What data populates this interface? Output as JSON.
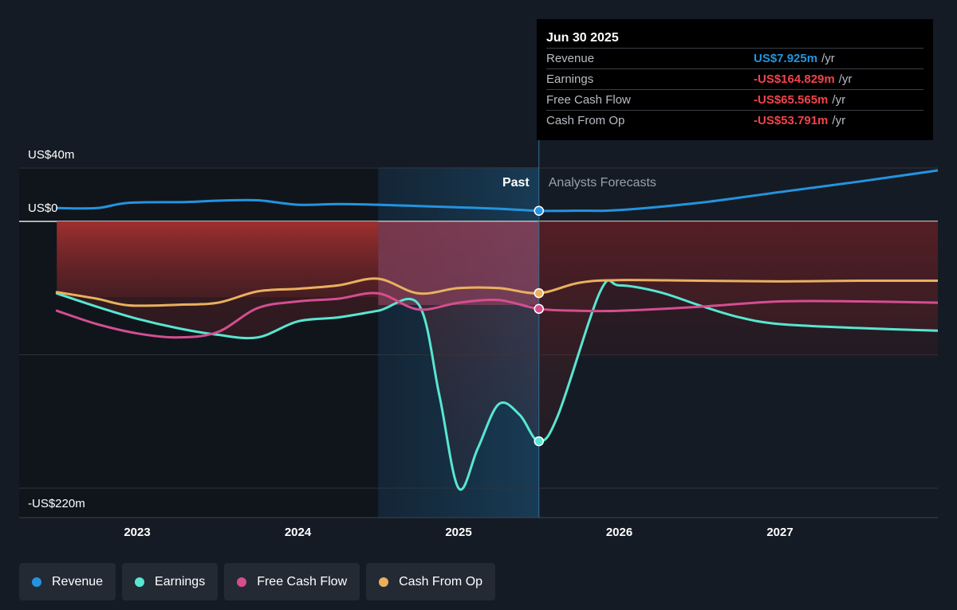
{
  "chart_data": {
    "type": "line",
    "y_unit_labels": [
      "US$40m",
      "US$0",
      "-US$220m"
    ],
    "ylim": [
      -220,
      40
    ],
    "x_ticks": [
      "2023",
      "2024",
      "2025",
      "2026",
      "2027"
    ],
    "past_label": "Past",
    "forecast_label": "Analysts Forecasts",
    "series": [
      {
        "name": "Revenue",
        "color": "#2394df",
        "values": [
          [
            2022.5,
            10
          ],
          [
            2022.75,
            10
          ],
          [
            2022.95,
            14
          ],
          [
            2023.3,
            14.5
          ],
          [
            2023.5,
            15.5
          ],
          [
            2023.75,
            15.8
          ],
          [
            2024.0,
            12.5
          ],
          [
            2024.25,
            13
          ],
          [
            2024.5,
            12.5
          ],
          [
            2024.75,
            11.5
          ],
          [
            2025.0,
            10.5
          ],
          [
            2025.25,
            9.5
          ],
          [
            2025.5,
            7.925
          ],
          [
            2025.75,
            8
          ],
          [
            2026.0,
            8.5
          ],
          [
            2026.5,
            14
          ],
          [
            2027.0,
            22
          ],
          [
            2027.5,
            30
          ],
          [
            2028.0,
            38.5
          ]
        ]
      },
      {
        "name": "Earnings",
        "color": "#58e6d1",
        "values": [
          [
            2022.5,
            -54
          ],
          [
            2022.75,
            -64
          ],
          [
            2023.0,
            -73
          ],
          [
            2023.25,
            -80
          ],
          [
            2023.5,
            -85
          ],
          [
            2023.75,
            -87
          ],
          [
            2024.0,
            -75
          ],
          [
            2024.25,
            -72
          ],
          [
            2024.5,
            -67
          ],
          [
            2024.75,
            -62
          ],
          [
            2024.88,
            -130
          ],
          [
            2025.0,
            -200
          ],
          [
            2025.12,
            -170
          ],
          [
            2025.25,
            -137
          ],
          [
            2025.38,
            -145
          ],
          [
            2025.5,
            -164.829
          ],
          [
            2025.62,
            -145
          ],
          [
            2025.88,
            -53
          ],
          [
            2026.0,
            -48
          ],
          [
            2026.25,
            -53
          ],
          [
            2026.5,
            -63
          ],
          [
            2026.75,
            -72
          ],
          [
            2027.0,
            -77
          ],
          [
            2027.5,
            -80
          ],
          [
            2028.0,
            -82
          ]
        ]
      },
      {
        "name": "Free Cash Flow",
        "color": "#d44e90",
        "values": [
          [
            2022.5,
            -67
          ],
          [
            2022.75,
            -77
          ],
          [
            2023.0,
            -84
          ],
          [
            2023.25,
            -87
          ],
          [
            2023.5,
            -83
          ],
          [
            2023.75,
            -65
          ],
          [
            2024.0,
            -60
          ],
          [
            2024.25,
            -58
          ],
          [
            2024.5,
            -54
          ],
          [
            2024.75,
            -66
          ],
          [
            2025.0,
            -61
          ],
          [
            2025.25,
            -59
          ],
          [
            2025.5,
            -65.565
          ],
          [
            2025.75,
            -67
          ],
          [
            2026.0,
            -67
          ],
          [
            2026.5,
            -64
          ],
          [
            2027.0,
            -60
          ],
          [
            2027.5,
            -60
          ],
          [
            2028.0,
            -61
          ]
        ]
      },
      {
        "name": "Cash From Op",
        "color": "#eab05e",
        "values": [
          [
            2022.5,
            -53
          ],
          [
            2022.75,
            -58
          ],
          [
            2022.95,
            -63
          ],
          [
            2023.25,
            -62.5
          ],
          [
            2023.5,
            -61
          ],
          [
            2023.75,
            -52.5
          ],
          [
            2024.0,
            -50.5
          ],
          [
            2024.25,
            -48
          ],
          [
            2024.5,
            -43
          ],
          [
            2024.75,
            -54
          ],
          [
            2025.0,
            -50
          ],
          [
            2025.25,
            -50
          ],
          [
            2025.5,
            -53.791
          ],
          [
            2025.75,
            -46
          ],
          [
            2026.0,
            -44
          ],
          [
            2026.5,
            -44.5
          ],
          [
            2027.0,
            -45
          ],
          [
            2027.5,
            -44.5
          ],
          [
            2028.0,
            -44.5
          ]
        ]
      }
    ],
    "split_x": 2025.5,
    "highlight_start_x": 2024.5,
    "grid": true
  },
  "tooltip": {
    "date": "Jun 30 2025",
    "rows": [
      {
        "label": "Revenue",
        "value": "US$7.925m",
        "unit": "/yr",
        "color": "#2394df"
      },
      {
        "label": "Earnings",
        "value": "-US$164.829m",
        "unit": "/yr",
        "color": "#f0434b"
      },
      {
        "label": "Free Cash Flow",
        "value": "-US$65.565m",
        "unit": "/yr",
        "color": "#f0434b"
      },
      {
        "label": "Cash From Op",
        "value": "-US$53.791m",
        "unit": "/yr",
        "color": "#f0434b"
      }
    ]
  },
  "legend": [
    {
      "label": "Revenue",
      "color": "#2394df"
    },
    {
      "label": "Earnings",
      "color": "#58e6d1"
    },
    {
      "label": "Free Cash Flow",
      "color": "#d44e90"
    },
    {
      "label": "Cash From Op",
      "color": "#eab05e"
    }
  ]
}
